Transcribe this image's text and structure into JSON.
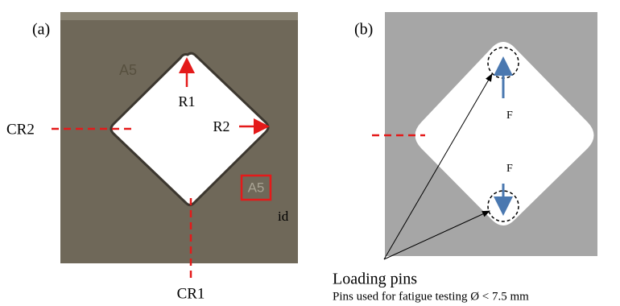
{
  "panel_a": {
    "label": "(a)",
    "engraving": "A5",
    "marked_id": "A5",
    "r1": "R1",
    "r2": "R2",
    "cr1": "CR1",
    "cr2": "CR2",
    "id": "id"
  },
  "panel_b": {
    "label": "(b)",
    "force_top": "F",
    "force_bottom": "F",
    "caption_title": "Loading pins",
    "caption_note": "Pins used for fatigue testing Ø < 7.5 mm"
  }
}
